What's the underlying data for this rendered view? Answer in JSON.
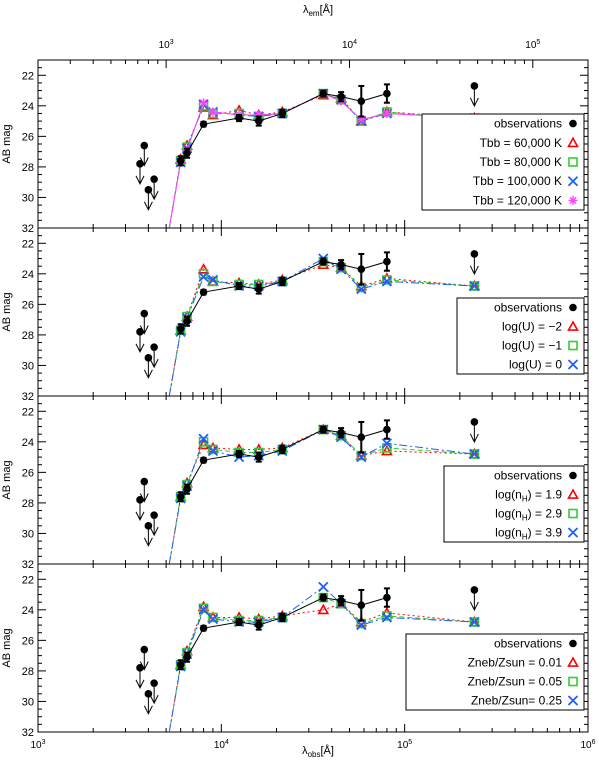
{
  "figure": {
    "top_axis_label": "λ",
    "top_axis_sub": "em",
    "top_axis_unit": "[Å]",
    "bottom_axis_label": "λ",
    "bottom_axis_sub": "obs",
    "bottom_axis_unit": "[Å]",
    "y_label": "AB mag"
  },
  "colors": {
    "observations": "#000000",
    "red": "#ff0000",
    "green": "#33cc33",
    "blue": "#1f5fff",
    "magenta": "#ff44ff"
  },
  "chart_data": [
    {
      "type": "line",
      "xscale": "log",
      "xlim": [
        1000,
        1000000
      ],
      "x2scale": "log",
      "x2lim": [
        200,
        200000
      ],
      "ylim": [
        32,
        21
      ],
      "yticks": [
        22,
        24,
        26,
        28,
        30,
        32
      ],
      "observations": {
        "name": "observations",
        "x": [
          6000,
          6500,
          8000,
          12500,
          16000,
          21500,
          36000,
          45000,
          58000,
          80000
        ],
        "y": [
          27.6,
          27.1,
          25.2,
          24.8,
          25.0,
          24.5,
          23.2,
          23.4,
          23.7,
          23.2
        ],
        "yerr": [
          0.3,
          0.3,
          0.15,
          0.2,
          0.3,
          0.25,
          0.2,
          0.3,
          1.0,
          0.6
        ]
      },
      "upper_limits": [
        {
          "x": 3600,
          "y": 27.8
        },
        {
          "x": 3800,
          "y": 26.6
        },
        {
          "x": 4000,
          "y": 29.5
        },
        {
          "x": 4300,
          "y": 28.8
        },
        {
          "x": 240000,
          "y": 22.7
        }
      ],
      "series": [
        {
          "name": "Tbb = 60,000 K",
          "marker": "triangle",
          "color": "#ff0000",
          "x": [
            5200,
            6000,
            6500,
            8000,
            9000,
            12500,
            16000,
            21500,
            36000,
            45000,
            58000,
            80000,
            240000
          ],
          "y": [
            32.0,
            27.5,
            26.6,
            24.1,
            24.6,
            24.3,
            24.6,
            24.4,
            23.3,
            23.5,
            25.0,
            24.4,
            24.8
          ]
        },
        {
          "name": "Tbb = 80,000 K",
          "marker": "square",
          "color": "#33cc33",
          "x": [
            5200,
            6000,
            6500,
            8000,
            9000,
            12500,
            16000,
            21500,
            36000,
            45000,
            58000,
            80000,
            240000
          ],
          "y": [
            32.0,
            27.6,
            26.7,
            24.0,
            24.5,
            24.5,
            24.7,
            24.5,
            23.2,
            23.6,
            25.0,
            24.4,
            24.9
          ]
        },
        {
          "name": "Tbb = 100,000 K",
          "marker": "x",
          "color": "#1f5fff",
          "x": [
            5200,
            6000,
            6500,
            8000,
            9000,
            12500,
            16000,
            21500,
            36000,
            45000,
            58000,
            80000,
            240000
          ],
          "y": [
            32.0,
            27.7,
            26.8,
            23.9,
            24.4,
            24.6,
            24.7,
            24.5,
            23.2,
            23.6,
            25.0,
            24.5,
            24.8
          ]
        },
        {
          "name": "Tbb = 120,000 K",
          "marker": "asterisk",
          "color": "#ff44ff",
          "x": [
            5200,
            6000,
            6500,
            8000,
            9000,
            12500,
            16000,
            21500,
            36000,
            45000,
            58000,
            80000,
            240000
          ],
          "y": [
            32.0,
            27.7,
            26.9,
            23.8,
            24.4,
            24.6,
            24.6,
            24.5,
            23.2,
            23.7,
            24.9,
            24.5,
            24.8
          ]
        }
      ]
    },
    {
      "type": "line",
      "xscale": "log",
      "xlim": [
        1000,
        1000000
      ],
      "ylim": [
        32,
        21
      ],
      "yticks": [
        22,
        24,
        26,
        28,
        30,
        32
      ],
      "observations": {
        "name": "observations",
        "x": [
          6000,
          6500,
          8000,
          12500,
          16000,
          21500,
          36000,
          45000,
          58000,
          80000
        ],
        "y": [
          27.6,
          27.1,
          25.2,
          24.8,
          25.0,
          24.5,
          23.2,
          23.4,
          23.7,
          23.2
        ],
        "yerr": [
          0.3,
          0.3,
          0.15,
          0.2,
          0.3,
          0.25,
          0.2,
          0.3,
          1.0,
          0.6
        ]
      },
      "upper_limits": [
        {
          "x": 3600,
          "y": 27.8
        },
        {
          "x": 3800,
          "y": 26.6
        },
        {
          "x": 4000,
          "y": 29.5
        },
        {
          "x": 4300,
          "y": 28.8
        },
        {
          "x": 240000,
          "y": 22.7
        }
      ],
      "series": [
        {
          "name": "log(U) = −2",
          "marker": "triangle",
          "color": "#ff0000",
          "x": [
            5200,
            6000,
            6500,
            8000,
            9000,
            12500,
            16000,
            21500,
            36000,
            45000,
            58000,
            80000,
            240000
          ],
          "y": [
            32.0,
            27.7,
            26.8,
            23.7,
            24.5,
            24.6,
            24.7,
            24.4,
            23.4,
            23.6,
            24.8,
            24.3,
            24.8
          ]
        },
        {
          "name": "log(U) = −1",
          "marker": "square",
          "color": "#33cc33",
          "x": [
            5200,
            6000,
            6500,
            8000,
            9000,
            12500,
            16000,
            21500,
            36000,
            45000,
            58000,
            80000,
            240000
          ],
          "y": [
            32.0,
            27.7,
            26.8,
            24.0,
            24.5,
            24.7,
            24.7,
            24.5,
            23.2,
            23.6,
            24.9,
            24.4,
            24.8
          ]
        },
        {
          "name": "log(U) = 0",
          "marker": "x",
          "color": "#1f5fff",
          "x": [
            5200,
            6000,
            6500,
            8000,
            9000,
            12500,
            16000,
            21500,
            36000,
            45000,
            58000,
            80000,
            240000
          ],
          "y": [
            32.0,
            27.8,
            26.9,
            24.2,
            24.4,
            24.8,
            24.8,
            24.5,
            23.0,
            23.7,
            25.0,
            24.5,
            24.8
          ]
        }
      ]
    },
    {
      "type": "line",
      "xscale": "log",
      "xlim": [
        1000,
        1000000
      ],
      "ylim": [
        32,
        21
      ],
      "yticks": [
        22,
        24,
        26,
        28,
        30,
        32
      ],
      "observations": {
        "name": "observations",
        "x": [
          6000,
          6500,
          8000,
          12500,
          16000,
          21500,
          36000,
          45000,
          58000,
          80000
        ],
        "y": [
          27.6,
          27.1,
          25.2,
          24.8,
          25.0,
          24.5,
          23.2,
          23.4,
          23.7,
          23.2
        ],
        "yerr": [
          0.3,
          0.3,
          0.15,
          0.2,
          0.3,
          0.25,
          0.2,
          0.3,
          1.0,
          0.6
        ]
      },
      "upper_limits": [
        {
          "x": 3600,
          "y": 27.8
        },
        {
          "x": 3800,
          "y": 26.6
        },
        {
          "x": 4000,
          "y": 29.5
        },
        {
          "x": 4300,
          "y": 28.8
        },
        {
          "x": 240000,
          "y": 22.7
        }
      ],
      "series": [
        {
          "name": "log(n_H) = 1.9",
          "marker": "triangle",
          "color": "#ff0000",
          "x": [
            5200,
            6000,
            6500,
            8000,
            9000,
            12500,
            16000,
            21500,
            36000,
            45000,
            58000,
            80000,
            240000
          ],
          "y": [
            32.0,
            27.6,
            26.7,
            24.2,
            24.4,
            24.5,
            24.5,
            24.4,
            23.2,
            23.6,
            24.9,
            24.6,
            24.8
          ]
        },
        {
          "name": "log(n_H) = 2.9",
          "marker": "square",
          "color": "#33cc33",
          "x": [
            5200,
            6000,
            6500,
            8000,
            9000,
            12500,
            16000,
            21500,
            36000,
            45000,
            58000,
            80000,
            240000
          ],
          "y": [
            32.0,
            27.6,
            26.8,
            24.0,
            24.5,
            24.7,
            24.7,
            24.5,
            23.2,
            23.6,
            24.9,
            24.4,
            24.8
          ]
        },
        {
          "name": "log(n_H) = 3.9",
          "marker": "x",
          "color": "#1f5fff",
          "x": [
            5200,
            6000,
            6500,
            8000,
            9000,
            12500,
            16000,
            21500,
            36000,
            45000,
            58000,
            80000,
            240000
          ],
          "y": [
            32.0,
            27.7,
            26.9,
            23.8,
            24.6,
            25.0,
            24.9,
            24.6,
            23.2,
            23.7,
            25.0,
            24.1,
            24.8
          ]
        }
      ]
    },
    {
      "type": "line",
      "xscale": "log",
      "xlim": [
        1000,
        1000000
      ],
      "ylim": [
        32,
        21
      ],
      "yticks": [
        22,
        24,
        26,
        28,
        30,
        32
      ],
      "observations": {
        "name": "observations",
        "x": [
          6000,
          6500,
          8000,
          12500,
          16000,
          21500,
          36000,
          45000,
          58000,
          80000
        ],
        "y": [
          27.6,
          27.1,
          25.2,
          24.8,
          25.0,
          24.5,
          23.2,
          23.4,
          23.7,
          23.2
        ],
        "yerr": [
          0.3,
          0.3,
          0.15,
          0.2,
          0.3,
          0.25,
          0.2,
          0.3,
          1.0,
          0.6
        ]
      },
      "upper_limits": [
        {
          "x": 3600,
          "y": 27.8
        },
        {
          "x": 3800,
          "y": 26.6
        },
        {
          "x": 4000,
          "y": 29.5
        },
        {
          "x": 4300,
          "y": 28.8
        },
        {
          "x": 240000,
          "y": 22.7
        }
      ],
      "series": [
        {
          "name": "Zneb/Zsun = 0.01",
          "marker": "triangle",
          "color": "#ff0000",
          "x": [
            5200,
            6000,
            6500,
            8000,
            9000,
            12500,
            16000,
            21500,
            36000,
            45000,
            58000,
            80000,
            240000
          ],
          "y": [
            32.0,
            27.6,
            26.7,
            23.8,
            24.5,
            24.5,
            24.6,
            24.4,
            24.0,
            23.6,
            24.8,
            24.2,
            24.8
          ]
        },
        {
          "name": "Zneb/Zsun = 0.05",
          "marker": "square",
          "color": "#33cc33",
          "x": [
            5200,
            6000,
            6500,
            8000,
            9000,
            12500,
            16000,
            21500,
            36000,
            45000,
            58000,
            80000,
            240000
          ],
          "y": [
            32.0,
            27.6,
            26.8,
            23.9,
            24.5,
            24.7,
            24.7,
            24.5,
            23.2,
            23.6,
            24.9,
            24.4,
            24.8
          ]
        },
        {
          "name": "Zneb/Zsun= 0.25",
          "marker": "x",
          "color": "#1f5fff",
          "x": [
            5200,
            6000,
            6500,
            8000,
            9000,
            12500,
            16000,
            21500,
            36000,
            45000,
            58000,
            80000,
            240000
          ],
          "y": [
            32.0,
            27.7,
            26.9,
            24.0,
            24.6,
            24.8,
            24.8,
            24.5,
            22.5,
            23.6,
            25.0,
            24.5,
            24.8
          ]
        }
      ]
    }
  ]
}
